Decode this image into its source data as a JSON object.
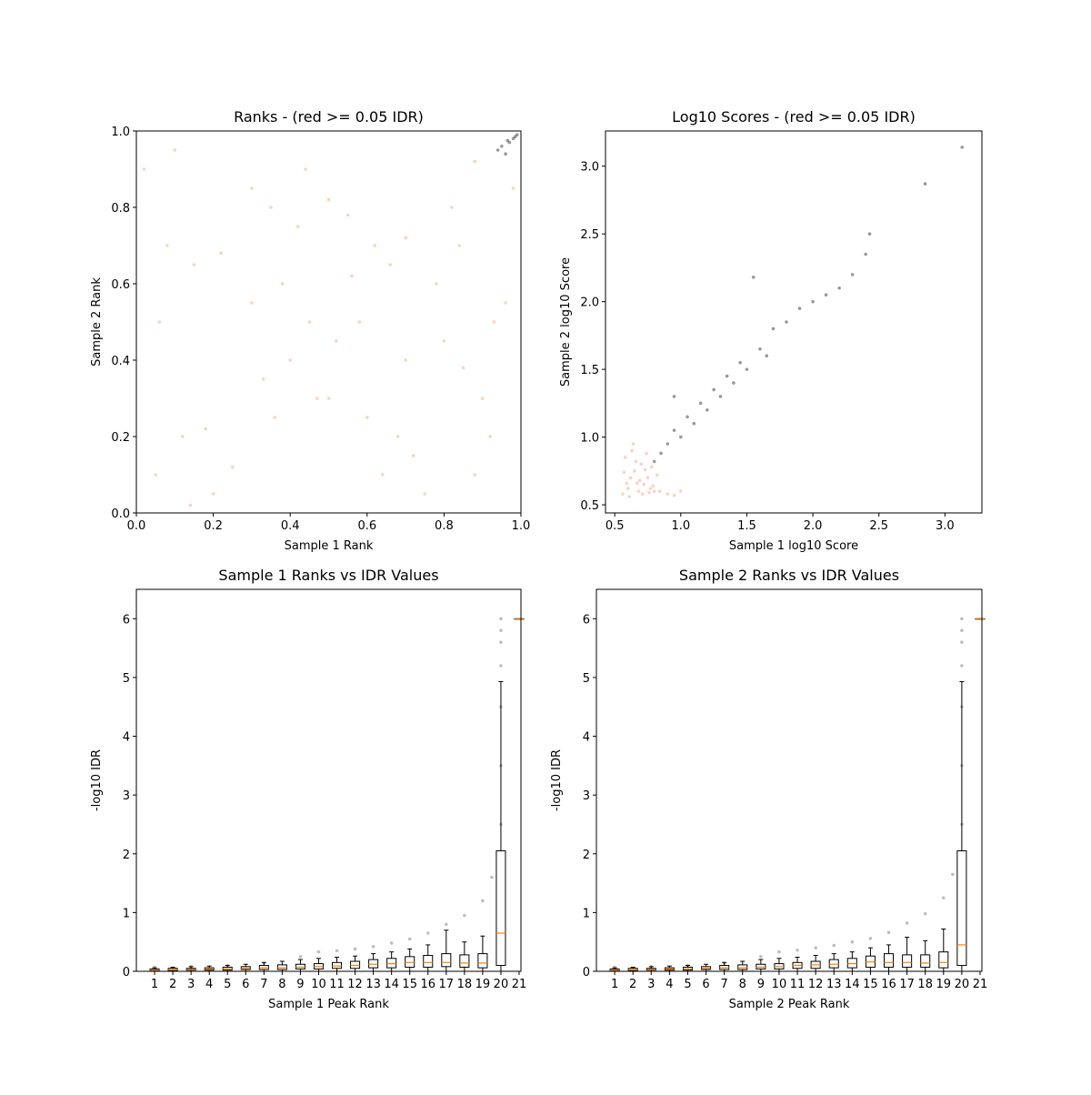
{
  "chart_data": [
    {
      "type": "scatter",
      "title": "Ranks - (red >= 0.05 IDR)",
      "x_label": "Sample 1 Rank",
      "y_label": "Sample 2 Rank",
      "xlim": [
        0,
        1
      ],
      "ylim": [
        0,
        1
      ],
      "xticks": [
        {
          "value": 0,
          "label": "0.0"
        },
        {
          "value": 0.2,
          "label": "0.2"
        },
        {
          "value": 0.4,
          "label": "0.4"
        },
        {
          "value": 0.6,
          "label": "0.6"
        },
        {
          "value": 0.8,
          "label": "0.8"
        },
        {
          "value": 1,
          "label": "1.0"
        }
      ],
      "yticks": [
        {
          "value": 0,
          "label": "0.0"
        },
        {
          "value": 0.2,
          "label": "0.2"
        },
        {
          "value": 0.4,
          "label": "0.4"
        },
        {
          "value": 0.6,
          "label": "0.6"
        },
        {
          "value": 0.8,
          "label": "0.8"
        },
        {
          "value": 1,
          "label": "1.0"
        }
      ],
      "series": [
        {
          "color": "#fa8a6a",
          "x": [
            0.05,
            0.12,
            0.2,
            0.08,
            0.15,
            0.22,
            0.3,
            0.35,
            0.42,
            0.5,
            0.55,
            0.33,
            0.4,
            0.47,
            0.58,
            0.62,
            0.66,
            0.7,
            0.72,
            0.68,
            0.8,
            0.85,
            0.9,
            0.78,
            0.82,
            0.88,
            0.93,
            0.96,
            0.02,
            0.1,
            0.25,
            0.45,
            0.52,
            0.6,
            0.75,
            0.98,
            0.3,
            0.38,
            0.64,
            0.7,
            0.84,
            0.92,
            0.18,
            0.5,
            0.56,
            0.14,
            0.06,
            0.36,
            0.44,
            0.88
          ],
          "y": [
            0.1,
            0.2,
            0.05,
            0.7,
            0.65,
            0.68,
            0.85,
            0.8,
            0.75,
            0.82,
            0.78,
            0.35,
            0.4,
            0.3,
            0.5,
            0.7,
            0.65,
            0.72,
            0.15,
            0.2,
            0.45,
            0.38,
            0.3,
            0.6,
            0.8,
            0.92,
            0.5,
            0.55,
            0.9,
            0.95,
            0.12,
            0.5,
            0.45,
            0.25,
            0.05,
            0.85,
            0.55,
            0.6,
            0.1,
            0.4,
            0.7,
            0.2,
            0.22,
            0.3,
            0.62,
            0.02,
            0.5,
            0.25,
            0.9,
            0.1
          ]
        },
        {
          "color": "#000000",
          "x": [
            0.94,
            0.95,
            0.96,
            0.97,
            0.98,
            0.99,
            0.965,
            0.985
          ],
          "y": [
            0.95,
            0.96,
            0.94,
            0.97,
            0.98,
            0.99,
            0.975,
            0.985
          ]
        }
      ]
    },
    {
      "type": "scatter",
      "title": "Log10 Scores - (red >= 0.05 IDR)",
      "x_label": "Sample 1 log10 Score",
      "y_label": "Sample 2 log10 Score",
      "xlim": [
        0.43,
        3.28
      ],
      "ylim": [
        0.44,
        3.26
      ],
      "xticks": [
        0.5,
        {
          "value": 1,
          "label": "1.0"
        },
        1.5,
        {
          "value": 2,
          "label": "2.0"
        },
        2.5,
        {
          "value": 3,
          "label": "3.0"
        }
      ],
      "yticks": [
        0.5,
        {
          "value": 1,
          "label": "1.0"
        },
        1.5,
        {
          "value": 2,
          "label": "2.0"
        },
        2.5,
        {
          "value": 3,
          "label": "3.0"
        }
      ],
      "series": [
        {
          "color": "#fa8a6a",
          "x": [
            0.56,
            0.6,
            0.62,
            0.65,
            0.68,
            0.7,
            0.72,
            0.75,
            0.78,
            0.8,
            0.82,
            0.58,
            0.63,
            0.67,
            0.71,
            0.74,
            0.77,
            0.57,
            0.61,
            0.66,
            0.69,
            0.73,
            0.76,
            0.79,
            0.84,
            0.9,
            0.95,
            1.0,
            0.64,
            0.59
          ],
          "y": [
            0.58,
            0.62,
            0.7,
            0.75,
            0.6,
            0.8,
            0.65,
            0.7,
            0.78,
            0.6,
            0.72,
            0.85,
            0.9,
            0.66,
            0.58,
            0.88,
            0.62,
            0.74,
            0.56,
            0.82,
            0.68,
            0.76,
            0.59,
            0.64,
            0.6,
            0.58,
            0.57,
            0.6,
            0.95,
            0.66
          ]
        },
        {
          "color": "#000000",
          "x": [
            0.8,
            0.85,
            0.9,
            0.95,
            1.0,
            1.05,
            1.1,
            1.15,
            1.2,
            1.25,
            1.3,
            1.35,
            1.4,
            1.45,
            1.5,
            1.55,
            1.6,
            1.65,
            1.7,
            1.8,
            1.9,
            2.0,
            2.1,
            2.2,
            2.3,
            2.4,
            2.43,
            2.85,
            3.13,
            0.95
          ],
          "y": [
            0.82,
            0.88,
            0.95,
            1.05,
            1.0,
            1.15,
            1.1,
            1.25,
            1.2,
            1.35,
            1.3,
            1.45,
            1.4,
            1.55,
            1.5,
            2.18,
            1.65,
            1.6,
            1.8,
            1.85,
            1.95,
            2.0,
            2.05,
            2.1,
            2.2,
            2.35,
            2.5,
            2.87,
            3.14,
            1.3
          ]
        }
      ]
    },
    {
      "type": "box",
      "title": "Sample 1 Ranks vs IDR Values",
      "x_label": "Sample 1 Peak Rank",
      "y_label": "-log10 IDR",
      "xlim": [
        0,
        21.1
      ],
      "ylim": [
        0,
        6.5
      ],
      "xticks": [
        1,
        2,
        3,
        4,
        5,
        6,
        7,
        8,
        9,
        10,
        11,
        12,
        13,
        14,
        15,
        16,
        17,
        18,
        19,
        20,
        21
      ],
      "yticks": [
        0,
        1,
        2,
        3,
        4,
        5,
        6
      ],
      "series": [
        {
          "color": "#000000",
          "x": [
            1,
            3,
            5,
            7,
            9,
            10,
            11,
            12,
            13,
            14,
            15,
            16,
            17,
            18,
            19,
            19.5,
            20,
            20,
            20,
            20,
            20,
            20,
            20
          ],
          "y": [
            0.07,
            0.08,
            0.1,
            0.14,
            0.25,
            0.33,
            0.35,
            0.38,
            0.42,
            0.48,
            0.55,
            0.65,
            0.8,
            0.95,
            1.2,
            1.6,
            2.5,
            3.5,
            4.5,
            5.2,
            5.6,
            5.8,
            6.0
          ]
        }
      ],
      "boxes": [
        {
          "position": 1,
          "low": 0,
          "q1": 0.01,
          "median": 0.02,
          "q3": 0.04,
          "high": 0.06
        },
        {
          "position": 2,
          "low": 0,
          "q1": 0.01,
          "median": 0.03,
          "q3": 0.05,
          "high": 0.07
        },
        {
          "position": 3,
          "low": 0,
          "q1": 0.02,
          "median": 0.03,
          "q3": 0.05,
          "high": 0.08
        },
        {
          "position": 4,
          "low": 0,
          "q1": 0.02,
          "median": 0.04,
          "q3": 0.06,
          "high": 0.09
        },
        {
          "position": 5,
          "low": 0,
          "q1": 0.02,
          "median": 0.04,
          "q3": 0.07,
          "high": 0.1
        },
        {
          "position": 6,
          "low": 0,
          "q1": 0.03,
          "median": 0.05,
          "q3": 0.08,
          "high": 0.12
        },
        {
          "position": 7,
          "low": 0,
          "q1": 0.03,
          "median": 0.06,
          "q3": 0.1,
          "high": 0.15
        },
        {
          "position": 8,
          "low": 0,
          "q1": 0.03,
          "median": 0.06,
          "q3": 0.11,
          "high": 0.17
        },
        {
          "position": 9,
          "low": 0,
          "q1": 0.04,
          "median": 0.07,
          "q3": 0.12,
          "high": 0.2
        },
        {
          "position": 10,
          "low": 0,
          "q1": 0.04,
          "median": 0.08,
          "q3": 0.13,
          "high": 0.22
        },
        {
          "position": 11,
          "low": 0,
          "q1": 0.05,
          "median": 0.09,
          "q3": 0.15,
          "high": 0.24
        },
        {
          "position": 12,
          "low": 0,
          "q1": 0.05,
          "median": 0.1,
          "q3": 0.17,
          "high": 0.26
        },
        {
          "position": 13,
          "low": 0,
          "q1": 0.06,
          "median": 0.12,
          "q3": 0.2,
          "high": 0.3
        },
        {
          "position": 14,
          "low": 0,
          "q1": 0.06,
          "median": 0.13,
          "q3": 0.22,
          "high": 0.33
        },
        {
          "position": 15,
          "low": 0,
          "q1": 0.07,
          "median": 0.15,
          "q3": 0.25,
          "high": 0.38
        },
        {
          "position": 16,
          "low": 0,
          "q1": 0.07,
          "median": 0.15,
          "q3": 0.27,
          "high": 0.45
        },
        {
          "position": 17,
          "low": 0,
          "q1": 0.08,
          "median": 0.15,
          "q3": 0.3,
          "high": 0.7
        },
        {
          "position": 18,
          "low": 0,
          "q1": 0.07,
          "median": 0.14,
          "q3": 0.28,
          "high": 0.5
        },
        {
          "position": 19,
          "low": 0,
          "q1": 0.06,
          "median": 0.14,
          "q3": 0.3,
          "high": 0.6
        },
        {
          "position": 20,
          "low": 0,
          "q1": 0.1,
          "median": 0.65,
          "q3": 2.05,
          "high": 4.93
        },
        {
          "position": 21,
          "low": 6,
          "q1": 6,
          "median": 6,
          "q3": 6,
          "high": 6
        }
      ]
    },
    {
      "type": "box",
      "title": "Sample 2 Ranks vs IDR Values",
      "x_label": "Sample 2 Peak Rank",
      "y_label": "-log10 IDR",
      "xlim": [
        0,
        21.1
      ],
      "ylim": [
        0,
        6.5
      ],
      "xticks": [
        1,
        2,
        3,
        4,
        5,
        6,
        7,
        8,
        9,
        10,
        11,
        12,
        13,
        14,
        15,
        16,
        17,
        18,
        19,
        20,
        21
      ],
      "yticks": [
        0,
        1,
        2,
        3,
        4,
        5,
        6
      ],
      "series": [
        {
          "color": "#000000",
          "x": [
            1,
            3,
            5,
            7,
            9,
            10,
            11,
            12,
            13,
            14,
            15,
            16,
            17,
            18,
            19,
            19.5,
            20,
            20,
            20,
            20,
            20,
            20,
            20
          ],
          "y": [
            0.07,
            0.08,
            0.1,
            0.14,
            0.25,
            0.33,
            0.36,
            0.4,
            0.44,
            0.5,
            0.56,
            0.66,
            0.82,
            0.98,
            1.25,
            1.65,
            2.5,
            3.5,
            4.5,
            5.2,
            5.6,
            5.8,
            6.0
          ]
        }
      ],
      "boxes": [
        {
          "position": 1,
          "low": 0,
          "q1": 0.01,
          "median": 0.02,
          "q3": 0.04,
          "high": 0.06
        },
        {
          "position": 2,
          "low": 0,
          "q1": 0.01,
          "median": 0.03,
          "q3": 0.05,
          "high": 0.07
        },
        {
          "position": 3,
          "low": 0,
          "q1": 0.02,
          "median": 0.03,
          "q3": 0.05,
          "high": 0.08
        },
        {
          "position": 4,
          "low": 0,
          "q1": 0.02,
          "median": 0.04,
          "q3": 0.06,
          "high": 0.09
        },
        {
          "position": 5,
          "low": 0,
          "q1": 0.02,
          "median": 0.04,
          "q3": 0.07,
          "high": 0.1
        },
        {
          "position": 6,
          "low": 0,
          "q1": 0.03,
          "median": 0.05,
          "q3": 0.08,
          "high": 0.12
        },
        {
          "position": 7,
          "low": 0,
          "q1": 0.03,
          "median": 0.06,
          "q3": 0.1,
          "high": 0.15
        },
        {
          "position": 8,
          "low": 0,
          "q1": 0.03,
          "median": 0.06,
          "q3": 0.11,
          "high": 0.17
        },
        {
          "position": 9,
          "low": 0,
          "q1": 0.04,
          "median": 0.07,
          "q3": 0.12,
          "high": 0.2
        },
        {
          "position": 10,
          "low": 0,
          "q1": 0.04,
          "median": 0.08,
          "q3": 0.13,
          "high": 0.22
        },
        {
          "position": 11,
          "low": 0,
          "q1": 0.05,
          "median": 0.1,
          "q3": 0.15,
          "high": 0.24
        },
        {
          "position": 12,
          "low": 0,
          "q1": 0.05,
          "median": 0.11,
          "q3": 0.17,
          "high": 0.27
        },
        {
          "position": 13,
          "low": 0,
          "q1": 0.06,
          "median": 0.12,
          "q3": 0.2,
          "high": 0.3
        },
        {
          "position": 14,
          "low": 0,
          "q1": 0.06,
          "median": 0.13,
          "q3": 0.22,
          "high": 0.33
        },
        {
          "position": 15,
          "low": 0,
          "q1": 0.07,
          "median": 0.16,
          "q3": 0.26,
          "high": 0.4
        },
        {
          "position": 16,
          "low": 0,
          "q1": 0.07,
          "median": 0.15,
          "q3": 0.3,
          "high": 0.45
        },
        {
          "position": 17,
          "low": 0,
          "q1": 0.07,
          "median": 0.15,
          "q3": 0.28,
          "high": 0.58
        },
        {
          "position": 18,
          "low": 0,
          "q1": 0.07,
          "median": 0.14,
          "q3": 0.28,
          "high": 0.52
        },
        {
          "position": 19,
          "low": 0,
          "q1": 0.06,
          "median": 0.15,
          "q3": 0.33,
          "high": 0.72
        },
        {
          "position": 20,
          "low": 0,
          "q1": 0.1,
          "median": 0.45,
          "q3": 2.05,
          "high": 4.93
        },
        {
          "position": 21,
          "low": 6,
          "q1": 6,
          "median": 6,
          "q3": 6,
          "high": 6
        }
      ]
    }
  ]
}
